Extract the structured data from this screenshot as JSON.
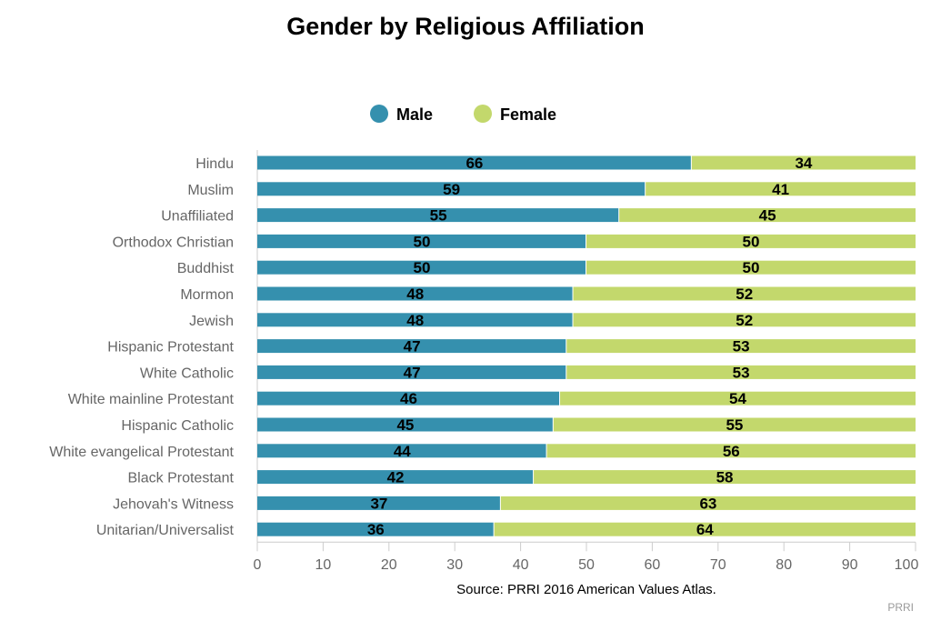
{
  "chart_data": {
    "type": "bar",
    "orientation": "horizontal",
    "stacked": true,
    "title": "Gender by Religious Affiliation",
    "xlabel": "",
    "ylabel": "",
    "xlim": [
      0,
      100
    ],
    "xticks": [
      0,
      10,
      20,
      30,
      40,
      50,
      60,
      70,
      80,
      90,
      100
    ],
    "legend_position": "top-center",
    "grid": false,
    "categories": [
      "Hindu",
      "Muslim",
      "Unaffiliated",
      "Orthodox Christian",
      "Buddhist",
      "Mormon",
      "Jewish",
      "Hispanic Protestant",
      "White Catholic",
      "White mainline Protestant",
      "Hispanic Catholic",
      "White evangelical Protestant",
      "Black Protestant",
      "Jehovah's Witness",
      "Unitarian/Universalist"
    ],
    "series": [
      {
        "name": "Male",
        "color": "#3590ae",
        "values": [
          66,
          59,
          55,
          50,
          50,
          48,
          48,
          47,
          47,
          46,
          45,
          44,
          42,
          37,
          36
        ]
      },
      {
        "name": "Female",
        "color": "#c3d86c",
        "values": [
          34,
          41,
          45,
          50,
          50,
          52,
          52,
          53,
          53,
          54,
          55,
          56,
          58,
          63,
          64
        ]
      }
    ],
    "source": "Source: PRRI 2016 American Values Atlas.",
    "credit": "PRRI"
  }
}
